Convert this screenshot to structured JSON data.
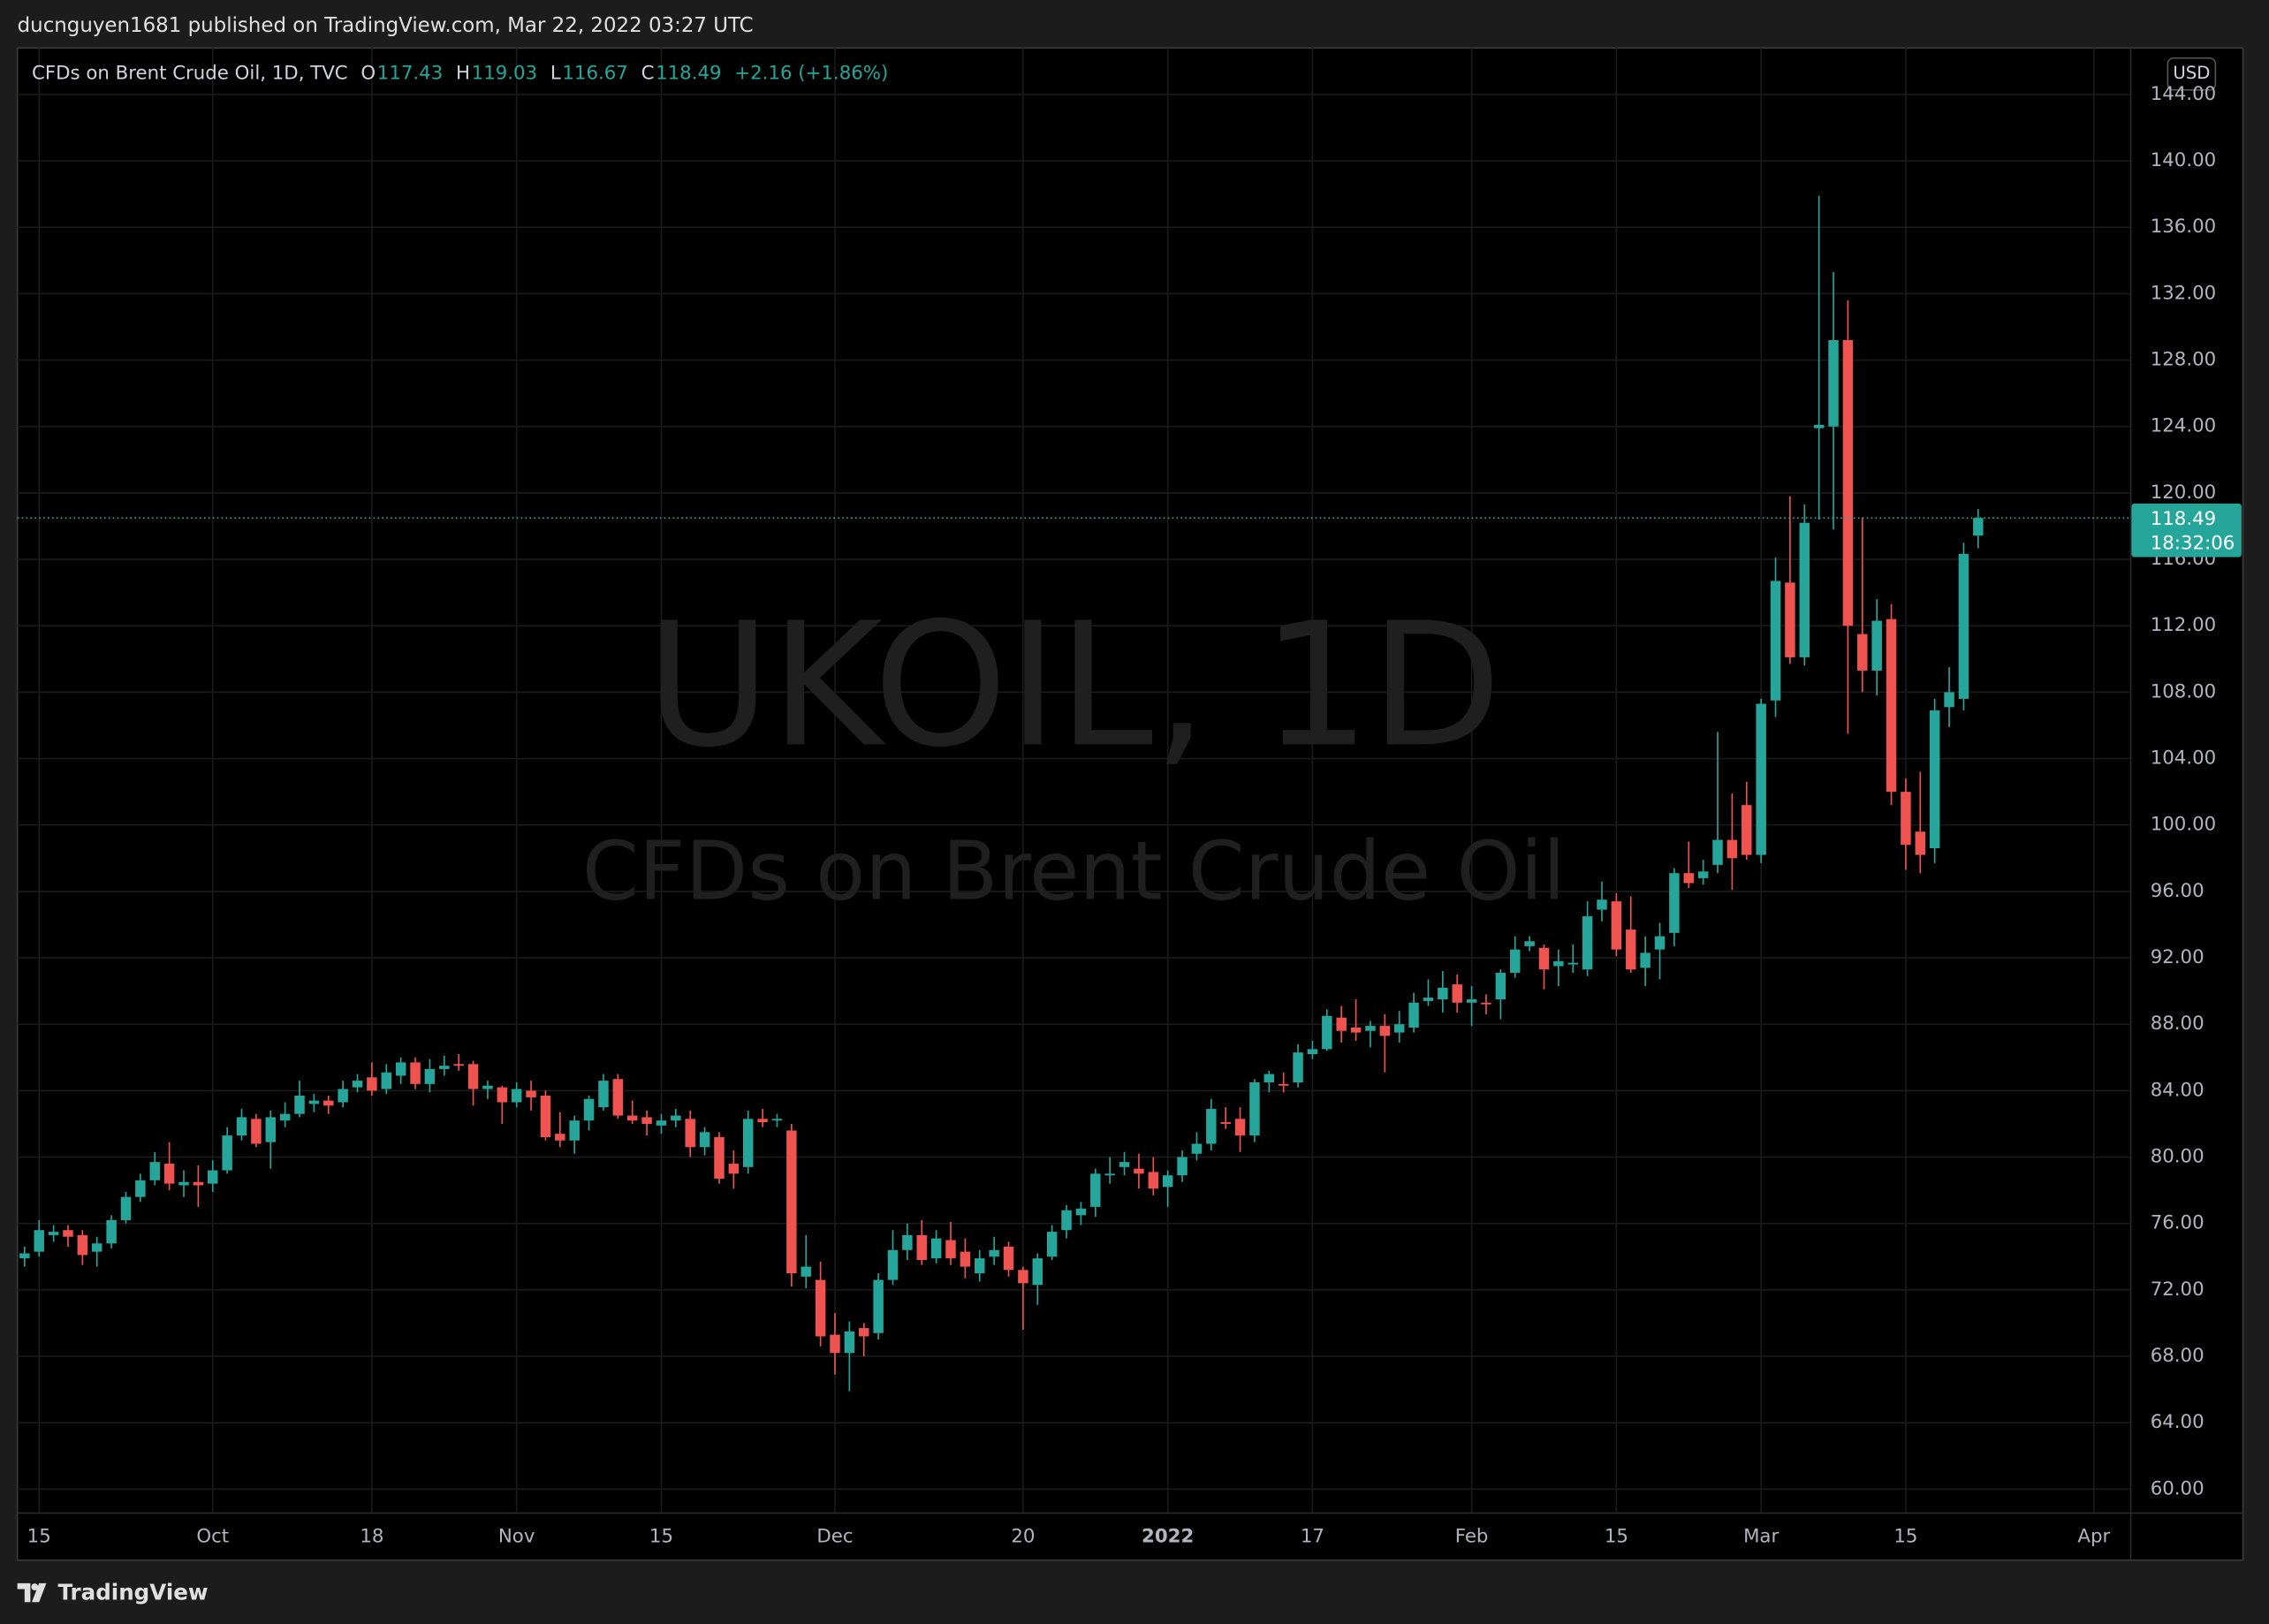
{
  "header": {
    "publisher": "ducnguyen1681 published on TradingView.com, Mar 22, 2022 03:27 UTC",
    "footer": "TradingView"
  },
  "chart_data": {
    "type": "candlestick",
    "title": "CFDs on Brent Crude Oil, 1D, TVC",
    "watermark_symbol": "UKOIL, 1D",
    "watermark_name": "CFDs on Brent Crude Oil",
    "currency": "USD",
    "ohlc_letters": [
      "O",
      "H",
      "L",
      "C"
    ],
    "change_label": "+2.16 (+1.86%)",
    "countdown": "18:32:06",
    "up_color": "#26a69a",
    "down_color": "#ef5350",
    "grid": true,
    "categories": [
      null,
      "15",
      null,
      null,
      null,
      null,
      null,
      null,
      null,
      null,
      null,
      null,
      null,
      "Oct",
      null,
      null,
      null,
      null,
      null,
      null,
      null,
      null,
      null,
      null,
      "18",
      null,
      null,
      null,
      null,
      null,
      null,
      null,
      null,
      null,
      "Nov",
      null,
      null,
      null,
      null,
      null,
      null,
      null,
      null,
      null,
      "15",
      null,
      null,
      null,
      null,
      null,
      null,
      null,
      null,
      null,
      null,
      null,
      "Dec",
      null,
      null,
      null,
      null,
      null,
      null,
      null,
      null,
      null,
      null,
      null,
      null,
      "20",
      null,
      null,
      null,
      null,
      null,
      null,
      null,
      null,
      null,
      "2022",
      null,
      null,
      null,
      null,
      null,
      null,
      null,
      null,
      null,
      "17",
      null,
      null,
      null,
      null,
      null,
      null,
      null,
      null,
      null,
      null,
      "Feb",
      null,
      null,
      null,
      null,
      null,
      null,
      null,
      null,
      null,
      "15",
      null,
      null,
      null,
      null,
      null,
      null,
      null,
      null,
      null,
      "Mar",
      null,
      null,
      null,
      null,
      null,
      null,
      null,
      null,
      null,
      "15",
      null,
      null,
      null,
      null,
      null,
      null,
      null,
      null,
      null,
      null,
      null,
      null,
      "Apr",
      null,
      null
    ],
    "open": [
      73.9,
      74.3,
      75.3,
      75.6,
      75.3,
      74.3,
      74.8,
      76.2,
      77.6,
      78.6,
      79.6,
      78.3,
      78.5,
      78.4,
      79.2,
      81.3,
      82.3,
      80.9,
      82.2,
      82.6,
      83.2,
      83.4,
      83.3,
      84.2,
      84.8,
      84.1,
      84.9,
      85.7,
      84.4,
      85.3,
      85.6,
      85.6,
      84.1,
      84.2,
      83.3,
      84.0,
      83.7,
      81.4,
      81.0,
      82.2,
      83.0,
      84.7,
      82.5,
      82.4,
      81.9,
      82.2,
      82.3,
      80.6,
      81.2,
      79.6,
      79.4,
      82.3,
      82.2,
      81.6,
      72.8,
      72.6,
      69.3,
      68.2,
      69.7,
      69.4,
      72.6,
      74.4,
      75.3,
      73.9,
      75.0,
      74.3,
      73.0,
      74.0,
      74.6,
      73.2,
      72.3,
      74.0,
      75.6,
      76.5,
      77.0,
      78.9,
      79.4,
      79.3,
      79.1,
      78.2,
      78.9,
      80.2,
      80.8,
      82.1,
      82.3,
      81.3,
      84.5,
      84.4,
      84.5,
      86.2,
      86.5,
      88.4,
      87.8,
      87.6,
      87.9,
      87.5,
      87.8,
      89.4,
      89.5,
      90.4,
      89.3,
      89.3,
      89.5,
      91.1,
      92.7,
      92.6,
      91.5,
      91.6,
      91.3,
      94.9,
      95.4,
      93.7,
      91.4,
      92.5,
      93.5,
      97.1,
      96.8,
      97.6,
      99.1,
      101.2,
      98.2,
      107.5,
      114.6,
      110.1,
      123.9,
      124.0,
      129.2,
      111.5,
      109.3,
      112.4,
      102.0,
      99.6,
      98.6,
      107.1,
      107.6,
      117.43,
      null,
      null,
      null,
      null,
      null,
      null,
      null,
      null,
      null,
      null
    ],
    "high": [
      74.6,
      76.2,
      75.9,
      75.9,
      75.6,
      75.2,
      76.5,
      77.9,
      79.0,
      80.3,
      80.9,
      79.2,
      79.5,
      79.8,
      81.8,
      82.9,
      82.6,
      82.8,
      83.3,
      84.6,
      83.8,
      83.7,
      84.6,
      85.0,
      85.7,
      85.6,
      86.0,
      86.0,
      85.9,
      86.1,
      86.2,
      85.8,
      84.6,
      84.3,
      84.5,
      84.6,
      84.0,
      82.7,
      82.5,
      83.7,
      85.0,
      85.0,
      83.4,
      82.8,
      82.6,
      82.9,
      82.8,
      81.8,
      81.5,
      80.4,
      82.8,
      82.9,
      82.6,
      82.0,
      75.3,
      73.7,
      70.6,
      70.1,
      70.0,
      73.0,
      75.6,
      76.0,
      76.2,
      75.6,
      76.1,
      75.1,
      74.4,
      75.2,
      74.9,
      73.4,
      74.2,
      75.9,
      77.1,
      77.3,
      79.3,
      80.0,
      80.3,
      80.2,
      80.0,
      79.2,
      80.4,
      81.5,
      83.5,
      83.0,
      83.0,
      84.7,
      85.2,
      85.1,
      86.8,
      87.0,
      88.9,
      89.1,
      89.5,
      88.2,
      88.6,
      88.8,
      89.9,
      90.7,
      91.2,
      91.0,
      90.3,
      89.8,
      91.3,
      93.3,
      93.3,
      92.8,
      92.5,
      92.8,
      95.4,
      96.6,
      95.9,
      95.7,
      93.3,
      94.1,
      97.4,
      99.0,
      97.9,
      105.6,
      101.9,
      102.6,
      107.6,
      116.1,
      119.8,
      119.3,
      137.9,
      133.3,
      131.6,
      118.5,
      113.6,
      113.3,
      102.8,
      103.2,
      107.6,
      109.5,
      117.0,
      119.03,
      null,
      null,
      null,
      null,
      null,
      null,
      null,
      null,
      null,
      null
    ],
    "low": [
      73.4,
      74.0,
      74.9,
      74.6,
      73.5,
      73.4,
      74.5,
      76.0,
      77.3,
      78.3,
      78.0,
      77.6,
      77.0,
      77.9,
      79.0,
      81.0,
      80.6,
      79.3,
      81.8,
      82.4,
      82.7,
      82.6,
      83.0,
      83.9,
      83.7,
      83.8,
      84.4,
      84.1,
      83.9,
      84.9,
      85.2,
      83.1,
      83.5,
      82.0,
      83.0,
      82.8,
      81.0,
      80.6,
      80.2,
      81.6,
      82.8,
      82.3,
      82.0,
      81.3,
      81.4,
      81.8,
      80.0,
      80.1,
      78.4,
      78.1,
      79.0,
      81.8,
      81.8,
      72.2,
      72.1,
      68.6,
      66.9,
      65.9,
      68.0,
      69.0,
      72.3,
      73.8,
      73.5,
      73.6,
      73.5,
      72.7,
      72.5,
      73.5,
      72.8,
      69.6,
      71.1,
      73.8,
      75.1,
      75.9,
      76.4,
      78.4,
      78.9,
      78.1,
      77.7,
      77.0,
      78.5,
      79.8,
      80.4,
      81.7,
      80.3,
      80.9,
      83.9,
      83.9,
      84.2,
      85.9,
      86.4,
      86.9,
      87.0,
      86.6,
      85.1,
      86.9,
      87.5,
      89.1,
      88.7,
      88.7,
      87.9,
      88.6,
      88.3,
      90.8,
      92.4,
      90.1,
      90.3,
      91.1,
      90.9,
      94.2,
      92.1,
      91.1,
      90.3,
      90.7,
      92.7,
      96.2,
      96.4,
      97.1,
      96.1,
      97.9,
      97.7,
      106.5,
      109.7,
      109.6,
      118.4,
      117.8,
      105.5,
      108.0,
      107.8,
      101.2,
      97.3,
      97.1,
      97.7,
      105.9,
      106.9,
      116.67,
      null,
      null,
      null,
      null,
      null,
      null,
      null,
      null,
      null,
      null
    ],
    "close": [
      74.2,
      75.6,
      75.5,
      75.2,
      74.1,
      74.8,
      76.2,
      77.6,
      78.6,
      79.7,
      78.4,
      78.5,
      78.3,
      79.2,
      81.3,
      82.4,
      80.8,
      82.4,
      82.6,
      83.7,
      83.4,
      83.1,
      84.1,
      84.6,
      84.0,
      85.1,
      85.7,
      84.4,
      85.3,
      85.5,
      85.5,
      84.1,
      84.3,
      83.3,
      84.1,
      83.6,
      81.2,
      81.0,
      82.2,
      83.5,
      84.6,
      82.5,
      82.2,
      82.0,
      82.2,
      82.5,
      80.6,
      81.5,
      78.7,
      79.0,
      82.3,
      82.1,
      82.3,
      73.0,
      73.4,
      69.2,
      68.2,
      69.5,
      69.2,
      72.6,
      74.4,
      75.3,
      73.8,
      75.1,
      73.9,
      73.4,
      73.9,
      74.4,
      73.2,
      72.4,
      73.9,
      75.5,
      76.8,
      76.9,
      79.0,
      79.0,
      79.7,
      79.0,
      78.1,
      78.9,
      80.0,
      80.8,
      82.9,
      82.0,
      81.3,
      84.5,
      85.0,
      84.3,
      86.3,
      86.5,
      88.5,
      87.6,
      87.5,
      87.9,
      87.3,
      88.0,
      89.3,
      89.6,
      90.2,
      89.3,
      89.5,
      89.2,
      91.1,
      92.5,
      93.0,
      91.3,
      91.8,
      91.7,
      94.5,
      95.5,
      92.5,
      91.3,
      92.3,
      93.3,
      97.1,
      96.5,
      97.2,
      99.1,
      98.0,
      98.2,
      107.3,
      114.7,
      110.1,
      118.2,
      124.1,
      129.2,
      112.0,
      109.3,
      112.3,
      102.0,
      98.8,
      98.2,
      106.9,
      108.0,
      116.33,
      118.49,
      null,
      null,
      null,
      null,
      null,
      null,
      null,
      null,
      null,
      null
    ],
    "ylim": [
      58.6,
      146.8
    ],
    "yticks": [
      {
        "value": 60,
        "label": "60.00"
      },
      {
        "value": 64,
        "label": "64.00"
      },
      {
        "value": 68,
        "label": "68.00"
      },
      {
        "value": 72,
        "label": "72.00"
      },
      {
        "value": 76,
        "label": "76.00"
      },
      {
        "value": 80,
        "label": "80.00"
      },
      {
        "value": 84,
        "label": "84.00"
      },
      {
        "value": 88,
        "label": "88.00"
      },
      {
        "value": 92,
        "label": "92.00"
      },
      {
        "value": 96,
        "label": "96.00"
      },
      {
        "value": 100,
        "label": "100.00"
      },
      {
        "value": 104,
        "label": "104.00"
      },
      {
        "value": 108,
        "label": "108.00"
      },
      {
        "value": 112,
        "label": "112.00"
      },
      {
        "value": 116,
        "label": "116.00"
      },
      {
        "value": 120,
        "label": "120.00"
      },
      {
        "value": 124,
        "label": "124.00"
      },
      {
        "value": 128,
        "label": "128.00"
      },
      {
        "value": 132,
        "label": "132.00"
      },
      {
        "value": 136,
        "label": "136.00"
      },
      {
        "value": 140,
        "label": "140.00"
      },
      {
        "value": 144,
        "label": "144.00"
      }
    ]
  }
}
